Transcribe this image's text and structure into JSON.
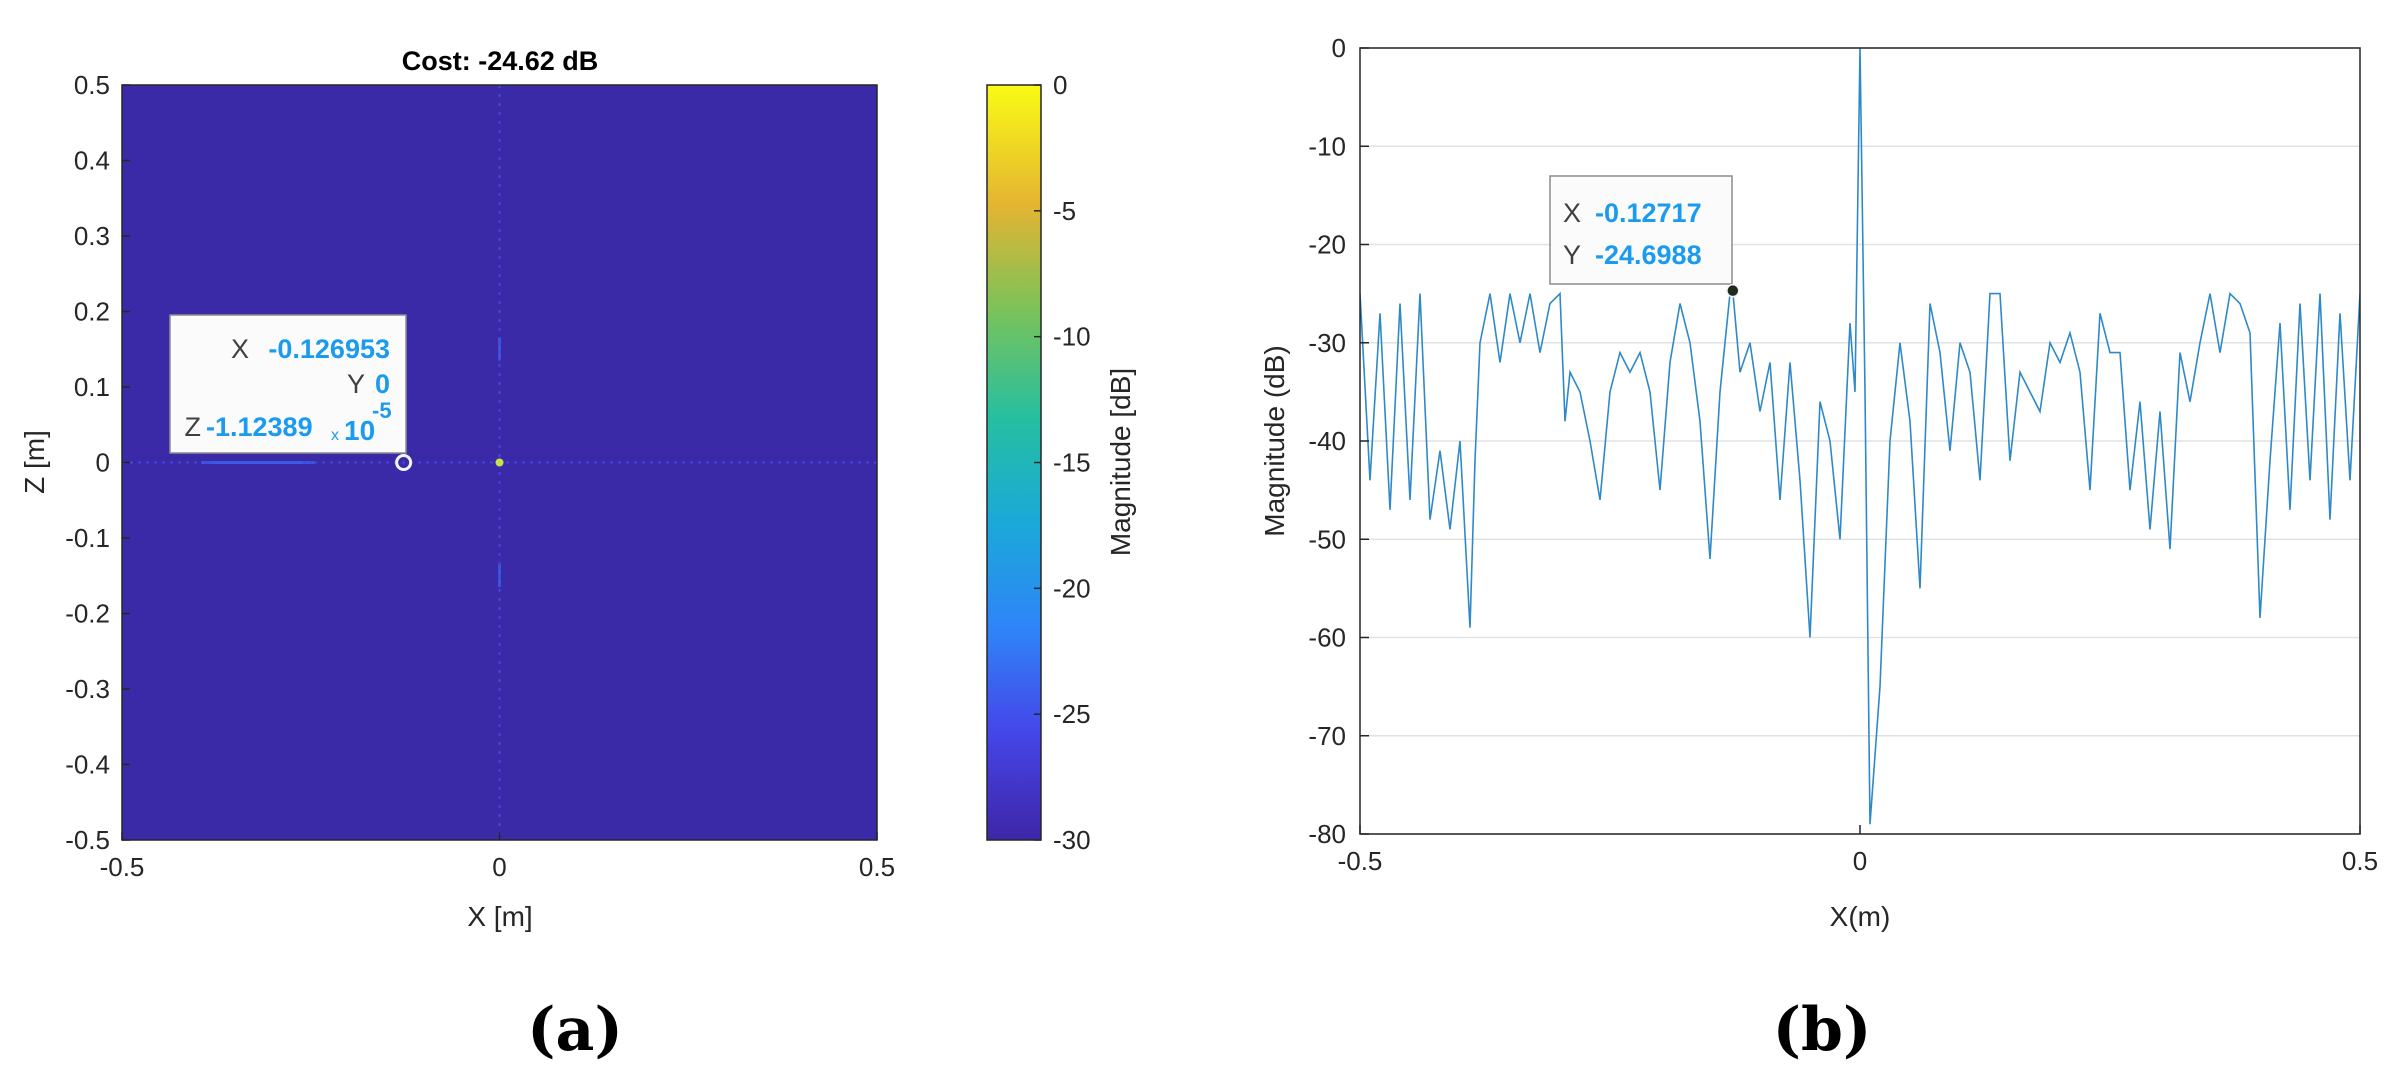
{
  "panel_labels": {
    "a": "(a)",
    "b": "(b)"
  },
  "colors": {
    "map_background": "#3a2aa8",
    "line": "#2f89c8",
    "datatip_value": "#1a9bf0",
    "datatip_key": "#404040",
    "grid": "#e2e2e2",
    "axis": "#262626"
  },
  "chart_data": [
    {
      "type": "heatmap",
      "title": "Cost: -24.62 dB",
      "xlabel": "X [m]",
      "ylabel": "Z [m]",
      "xlim": [
        -0.5,
        0.5
      ],
      "ylim": [
        -0.5,
        0.5
      ],
      "xticks": [
        "-0.5",
        "0",
        "0.5"
      ],
      "yticks": [
        "0.5",
        "0.4",
        "0.3",
        "0.2",
        "0.1",
        "0",
        "-0.1",
        "-0.2",
        "-0.3",
        "-0.4",
        "-0.5"
      ],
      "colormap": "parula",
      "colorbar": {
        "label": "Magnitude [dB]",
        "range": [
          -30,
          0
        ],
        "ticks": [
          "0",
          "-5",
          "-10",
          "-15",
          "-20",
          "-25",
          "-30"
        ]
      },
      "features": [
        {
          "name": "main peak",
          "x": 0,
          "z": 0,
          "value_db": 0
        },
        {
          "name": "horizontal cut",
          "z": 0
        },
        {
          "name": "vertical cut",
          "x": 0
        }
      ],
      "datatip": {
        "x_key": "X",
        "x_value": "-0.126953",
        "y_key": "Y",
        "y_value": "0",
        "z_key": "Z",
        "z_value": "-1.12389",
        "z_times": "x",
        "z_base": "10",
        "z_exp": "-5",
        "point": {
          "x": -0.126953,
          "z": 0
        }
      }
    },
    {
      "type": "line",
      "xlabel": "X(m)",
      "ylabel": "Magnitude (dB)",
      "xlim": [
        -0.5,
        0.5
      ],
      "ylim": [
        -80,
        0
      ],
      "xticks": [
        "-0.5",
        "0",
        "0.5"
      ],
      "yticks": [
        "0",
        "-10",
        "-20",
        "-30",
        "-40",
        "-50",
        "-60",
        "-70",
        "-80"
      ],
      "grid": "horizontal",
      "series": [
        {
          "x": [
            -0.5,
            -0.49,
            -0.48,
            -0.47,
            -0.46,
            -0.45,
            -0.44,
            -0.43,
            -0.42,
            -0.41,
            -0.4,
            -0.39,
            -0.385,
            -0.38,
            -0.37,
            -0.36,
            -0.35,
            -0.34,
            -0.33,
            -0.32,
            -0.31,
            -0.3,
            -0.295,
            -0.29,
            -0.28,
            -0.27,
            -0.26,
            -0.25,
            -0.24,
            -0.23,
            -0.22,
            -0.21,
            -0.2,
            -0.19,
            -0.18,
            -0.17,
            -0.16,
            -0.15,
            -0.14,
            -0.13,
            -0.127,
            -0.12,
            -0.11,
            -0.1,
            -0.09,
            -0.08,
            -0.07,
            -0.06,
            -0.05,
            -0.04,
            -0.03,
            -0.02,
            -0.01,
            -0.005,
            0,
            0.005,
            0.01,
            0.02,
            0.03,
            0.04,
            0.05,
            0.06,
            0.07,
            0.08,
            0.09,
            0.1,
            0.11,
            0.12,
            0.13,
            0.14,
            0.15,
            0.16,
            0.17,
            0.18,
            0.19,
            0.2,
            0.21,
            0.22,
            0.23,
            0.24,
            0.25,
            0.26,
            0.27,
            0.28,
            0.29,
            0.3,
            0.31,
            0.32,
            0.33,
            0.34,
            0.35,
            0.36,
            0.37,
            0.38,
            0.39,
            0.4,
            0.41,
            0.42,
            0.43,
            0.44,
            0.45,
            0.46,
            0.47,
            0.48,
            0.49,
            0.5
          ],
          "y": [
            -25,
            -44,
            -27,
            -47,
            -26,
            -46,
            -25,
            -48,
            -41,
            -49,
            -40,
            -59,
            -42,
            -30,
            -25,
            -32,
            -25,
            -30,
            -25,
            -31,
            -26,
            -25,
            -38,
            -33,
            -35,
            -40,
            -46,
            -35,
            -31,
            -33,
            -31,
            -35,
            -45,
            -32,
            -26,
            -30,
            -38,
            -52,
            -35,
            -25,
            -25,
            -33,
            -30,
            -37,
            -32,
            -46,
            -32,
            -44,
            -60,
            -36,
            -40,
            -50,
            -28,
            -35,
            0,
            -35,
            -79,
            -65,
            -40,
            -30,
            -38,
            -55,
            -26,
            -31,
            -41,
            -30,
            -33,
            -44,
            -25,
            -25,
            -42,
            -33,
            -35,
            -37,
            -30,
            -32,
            -29,
            -33,
            -45,
            -27,
            -31,
            -31,
            -45,
            -36,
            -49,
            -37,
            -51,
            -31,
            -36,
            -30,
            -25,
            -31,
            -25,
            -26,
            -29,
            -58,
            -42,
            -28,
            -47,
            -26,
            -44,
            -25,
            -48,
            -27,
            -44,
            -25
          ]
        }
      ],
      "datatip": {
        "x_key": "X",
        "x_value": "-0.12717",
        "y_key": "Y",
        "y_value": "-24.6988",
        "point": {
          "x": -0.12717,
          "y": -24.6988
        }
      }
    }
  ]
}
